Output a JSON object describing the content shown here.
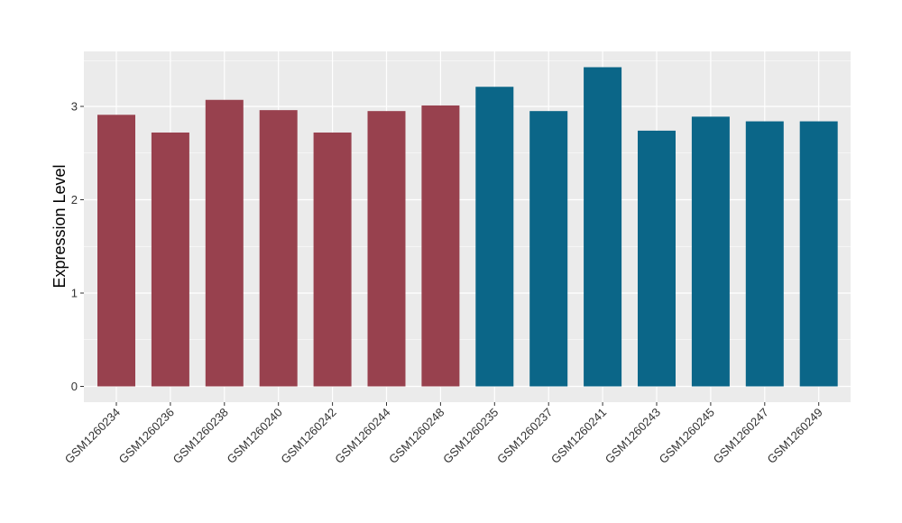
{
  "chart_data": {
    "type": "bar",
    "title": "",
    "xlabel": "",
    "ylabel": "Expression Level",
    "ylim": [
      0,
      3.5
    ],
    "yticks": [
      0,
      1,
      2,
      3
    ],
    "grid": true,
    "legend": "none",
    "categories": [
      "GSM1260234",
      "GSM1260236",
      "GSM1260238",
      "GSM1260240",
      "GSM1260242",
      "GSM1260244",
      "GSM1260248",
      "GSM1260235",
      "GSM1260237",
      "GSM1260241",
      "GSM1260243",
      "GSM1260245",
      "GSM1260247",
      "GSM1260249"
    ],
    "values": [
      2.91,
      2.72,
      3.07,
      2.96,
      2.72,
      2.95,
      3.01,
      3.21,
      2.95,
      3.42,
      2.74,
      2.89,
      2.84,
      2.84
    ],
    "colors": [
      "#98414e",
      "#98414e",
      "#98414e",
      "#98414e",
      "#98414e",
      "#98414e",
      "#98414e",
      "#0b6688",
      "#0b6688",
      "#0b6688",
      "#0b6688",
      "#0b6688",
      "#0b6688",
      "#0b6688"
    ]
  },
  "style": {
    "panel_background": "#ebebeb",
    "grid_color": "#ffffff"
  }
}
